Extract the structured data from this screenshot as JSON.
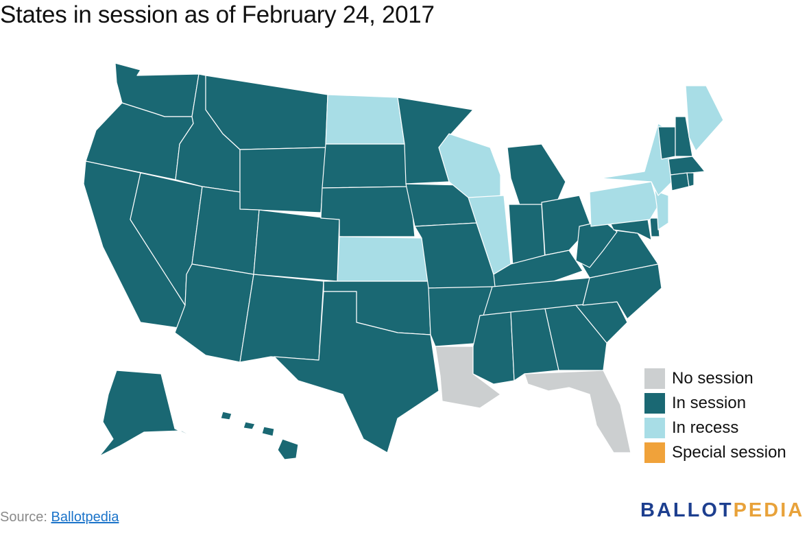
{
  "title": "States in session as of February 24, 2017",
  "colors": {
    "no_session": "#cccfd0",
    "in_session": "#1a6873",
    "in_recess": "#a8dde6",
    "special_session": "#f0a23a"
  },
  "legend": [
    {
      "label": "No session",
      "color": "#cccfd0"
    },
    {
      "label": "In session",
      "color": "#1a6873"
    },
    {
      "label": "In recess",
      "color": "#a8dde6"
    },
    {
      "label": "Special session",
      "color": "#f0a23a"
    }
  ],
  "states": {
    "no_session": [
      "LA",
      "FL"
    ],
    "in_recess": [
      "ND",
      "WI",
      "IL",
      "KS",
      "NY",
      "PA",
      "NJ",
      "ME"
    ],
    "in_session": [
      "WA",
      "OR",
      "CA",
      "NV",
      "ID",
      "MT",
      "WY",
      "UT",
      "AZ",
      "CO",
      "NM",
      "SD",
      "NE",
      "OK",
      "TX",
      "MN",
      "IA",
      "MO",
      "AR",
      "MI",
      "IN",
      "OH",
      "KY",
      "TN",
      "MS",
      "AL",
      "GA",
      "SC",
      "NC",
      "VA",
      "WV",
      "MD",
      "DE",
      "VT",
      "NH",
      "MA",
      "CT",
      "RI",
      "AK",
      "HI"
    ]
  },
  "source": {
    "prefix": "Source: ",
    "link": "Ballotpedia"
  },
  "brand": {
    "part1": "BALLOT",
    "part2": "PEDIA"
  }
}
